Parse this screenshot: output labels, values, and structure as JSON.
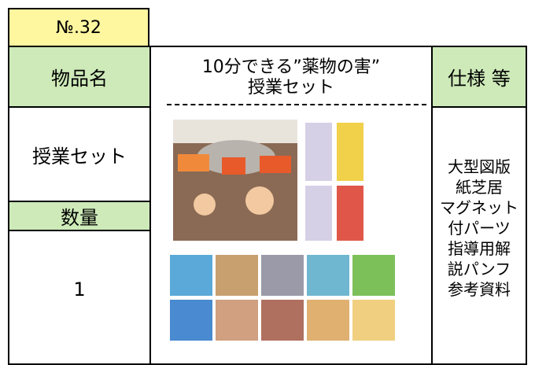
{
  "number": "№.32",
  "table": {
    "item_name_header": "物品名",
    "item_title": [
      "10分できる”薬物の害”",
      "授業セット"
    ],
    "spec_header": "仕様 等",
    "item_name": "授業セット",
    "quantity_header": "数量",
    "quantity": "1",
    "spec": [
      "大型図版",
      "紙芝居",
      "マグネット",
      "付パーツ",
      "指導用解",
      "説パンフ",
      "参考資料"
    ]
  }
}
